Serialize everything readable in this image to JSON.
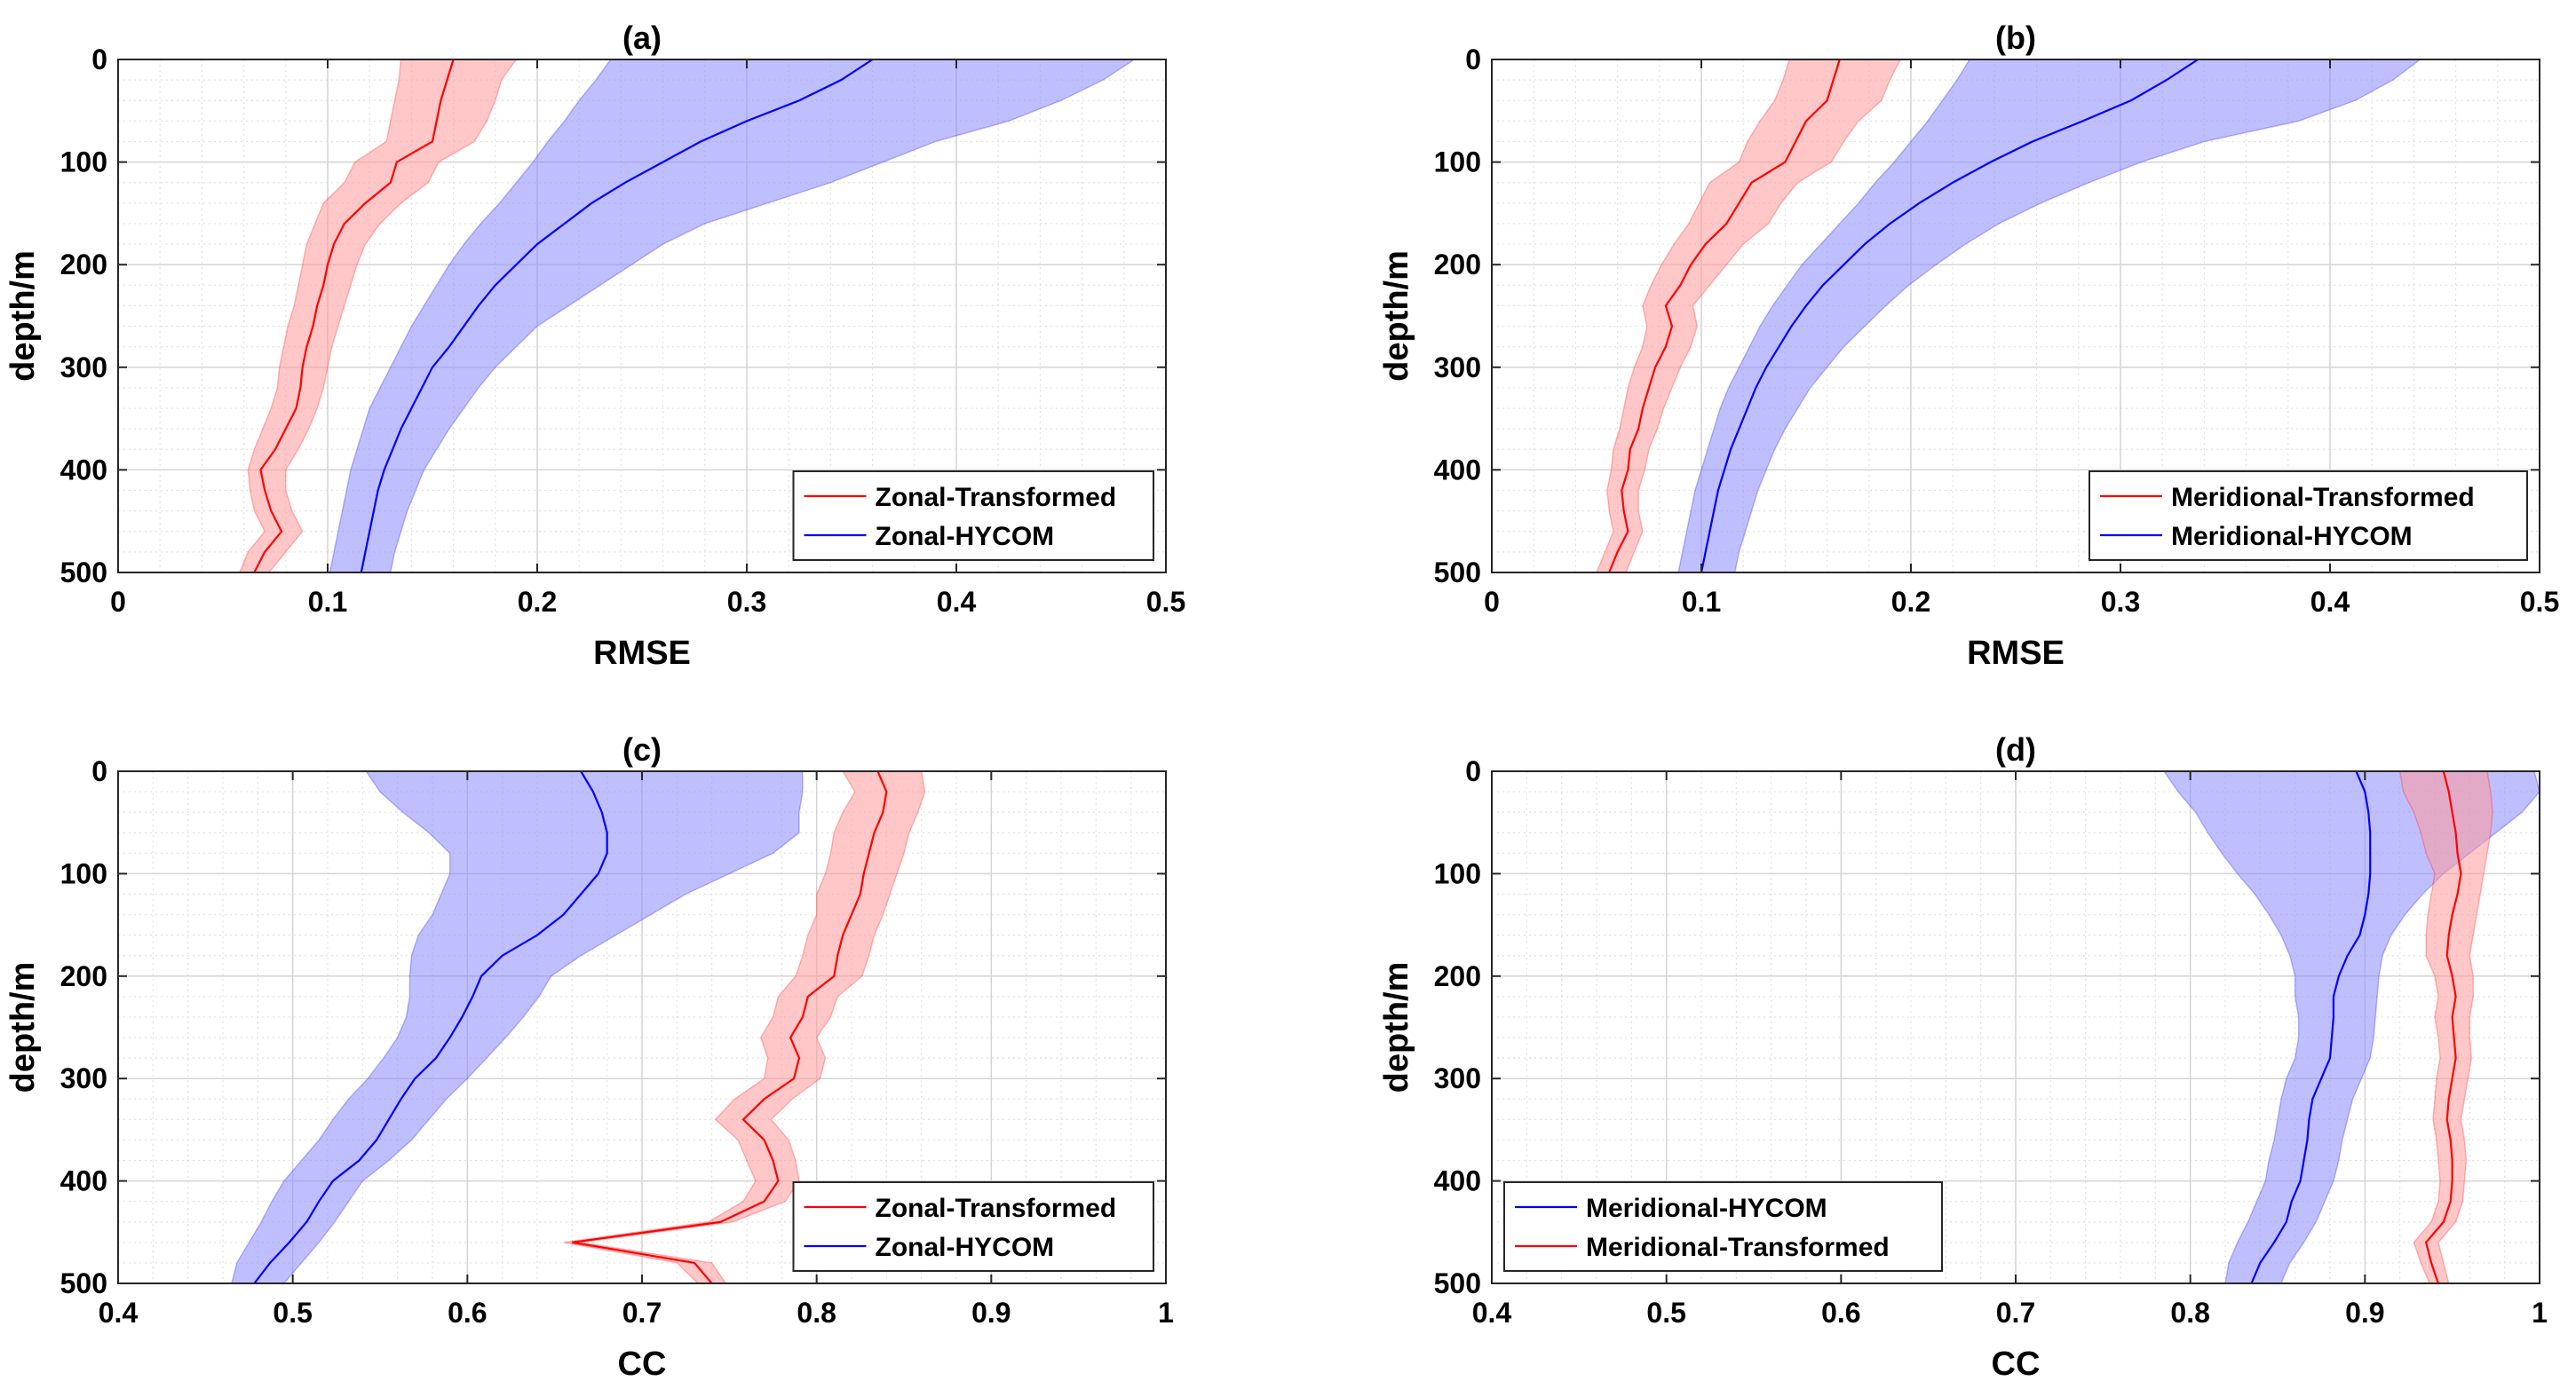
{
  "figure": {
    "panels": [
      "(a)",
      "(b)",
      "(c)",
      "(d)"
    ]
  },
  "chart_data": [
    {
      "id": "a",
      "type": "line",
      "title": "(a)",
      "xlabel": "RMSE",
      "ylabel": "depth/m",
      "xlim": [
        0,
        0.5
      ],
      "ylim": [
        0,
        500
      ],
      "y_reversed": true,
      "xticks": [
        "0",
        "0.1",
        "0.2",
        "0.3",
        "0.4",
        "0.5"
      ],
      "yticks": [
        "0",
        "100",
        "200",
        "300",
        "400",
        "500"
      ],
      "grid": true,
      "legend_position": "bottom-right",
      "depth": [
        0,
        20,
        40,
        60,
        80,
        100,
        120,
        140,
        160,
        180,
        200,
        220,
        240,
        260,
        280,
        300,
        320,
        340,
        360,
        380,
        400,
        420,
        440,
        460,
        480,
        500
      ],
      "series": [
        {
          "name": "Zonal-Transformed",
          "color": "#ff0000",
          "fill": "#ff9999",
          "mean": [
            0.16,
            0.157,
            0.154,
            0.152,
            0.15,
            0.133,
            0.13,
            0.118,
            0.108,
            0.103,
            0.1,
            0.098,
            0.095,
            0.093,
            0.09,
            0.088,
            0.087,
            0.085,
            0.08,
            0.075,
            0.068,
            0.07,
            0.073,
            0.078,
            0.07,
            0.065
          ],
          "lower": [
            0.135,
            0.134,
            0.132,
            0.13,
            0.128,
            0.113,
            0.108,
            0.098,
            0.094,
            0.09,
            0.088,
            0.086,
            0.084,
            0.081,
            0.079,
            0.077,
            0.076,
            0.073,
            0.069,
            0.065,
            0.062,
            0.063,
            0.065,
            0.07,
            0.062,
            0.058
          ],
          "upper": [
            0.19,
            0.183,
            0.18,
            0.176,
            0.17,
            0.153,
            0.148,
            0.135,
            0.125,
            0.118,
            0.114,
            0.111,
            0.108,
            0.105,
            0.102,
            0.1,
            0.098,
            0.095,
            0.091,
            0.086,
            0.08,
            0.08,
            0.083,
            0.088,
            0.08,
            0.072
          ]
        },
        {
          "name": "Zonal-HYCOM",
          "color": "#0000ff",
          "fill": "#8a8aff",
          "mean": [
            0.36,
            0.345,
            0.325,
            0.3,
            0.278,
            0.26,
            0.242,
            0.226,
            0.213,
            0.2,
            0.19,
            0.18,
            0.172,
            0.165,
            0.158,
            0.15,
            0.145,
            0.14,
            0.135,
            0.131,
            0.127,
            0.124,
            0.122,
            0.12,
            0.118,
            0.116
          ],
          "lower": [
            0.235,
            0.228,
            0.22,
            0.213,
            0.205,
            0.198,
            0.19,
            0.182,
            0.173,
            0.165,
            0.158,
            0.152,
            0.146,
            0.14,
            0.135,
            0.13,
            0.125,
            0.12,
            0.117,
            0.114,
            0.111,
            0.109,
            0.107,
            0.105,
            0.103,
            0.101
          ],
          "upper": [
            0.485,
            0.47,
            0.45,
            0.425,
            0.39,
            0.365,
            0.34,
            0.31,
            0.28,
            0.26,
            0.245,
            0.23,
            0.215,
            0.2,
            0.19,
            0.18,
            0.172,
            0.165,
            0.158,
            0.152,
            0.146,
            0.142,
            0.138,
            0.135,
            0.132,
            0.13
          ]
        }
      ]
    },
    {
      "id": "b",
      "type": "line",
      "title": "(b)",
      "xlabel": "RMSE",
      "ylabel": "depth/m",
      "xlim": [
        0,
        0.5
      ],
      "ylim": [
        0,
        500
      ],
      "y_reversed": true,
      "xticks": [
        "0",
        "0.1",
        "0.2",
        "0.3",
        "0.4",
        "0.5"
      ],
      "yticks": [
        "0",
        "100",
        "200",
        "300",
        "400",
        "500"
      ],
      "grid": true,
      "legend_position": "bottom-right",
      "depth": [
        0,
        20,
        40,
        60,
        80,
        100,
        120,
        140,
        160,
        180,
        200,
        220,
        240,
        260,
        280,
        300,
        320,
        340,
        360,
        380,
        400,
        420,
        440,
        460,
        480,
        500
      ],
      "series": [
        {
          "name": "Meridional-Transformed",
          "color": "#ff0000",
          "fill": "#ff9999",
          "mean": [
            0.166,
            0.163,
            0.16,
            0.15,
            0.145,
            0.14,
            0.124,
            0.118,
            0.112,
            0.102,
            0.095,
            0.09,
            0.083,
            0.086,
            0.083,
            0.078,
            0.075,
            0.072,
            0.07,
            0.066,
            0.065,
            0.062,
            0.063,
            0.065,
            0.06,
            0.056
          ],
          "lower": [
            0.142,
            0.139,
            0.135,
            0.128,
            0.122,
            0.118,
            0.104,
            0.099,
            0.094,
            0.087,
            0.081,
            0.076,
            0.072,
            0.074,
            0.072,
            0.068,
            0.065,
            0.063,
            0.061,
            0.058,
            0.057,
            0.055,
            0.056,
            0.058,
            0.054,
            0.05
          ],
          "upper": [
            0.195,
            0.19,
            0.186,
            0.175,
            0.168,
            0.162,
            0.146,
            0.138,
            0.132,
            0.12,
            0.112,
            0.104,
            0.096,
            0.098,
            0.095,
            0.09,
            0.086,
            0.082,
            0.079,
            0.075,
            0.073,
            0.07,
            0.07,
            0.072,
            0.068,
            0.064
          ]
        },
        {
          "name": "Meridional-HYCOM",
          "color": "#0000ff",
          "fill": "#8a8aff",
          "mean": [
            0.337,
            0.322,
            0.305,
            0.282,
            0.258,
            0.238,
            0.22,
            0.204,
            0.19,
            0.178,
            0.168,
            0.158,
            0.15,
            0.143,
            0.137,
            0.131,
            0.126,
            0.122,
            0.118,
            0.114,
            0.111,
            0.108,
            0.106,
            0.104,
            0.102,
            0.1
          ],
          "lower": [
            0.228,
            0.222,
            0.215,
            0.208,
            0.2,
            0.192,
            0.183,
            0.175,
            0.166,
            0.157,
            0.148,
            0.141,
            0.134,
            0.128,
            0.123,
            0.118,
            0.113,
            0.109,
            0.106,
            0.103,
            0.1,
            0.097,
            0.095,
            0.093,
            0.091,
            0.089
          ],
          "upper": [
            0.443,
            0.43,
            0.412,
            0.385,
            0.34,
            0.31,
            0.285,
            0.262,
            0.242,
            0.226,
            0.212,
            0.199,
            0.188,
            0.178,
            0.168,
            0.16,
            0.152,
            0.146,
            0.14,
            0.135,
            0.131,
            0.127,
            0.124,
            0.121,
            0.118,
            0.116
          ]
        }
      ]
    },
    {
      "id": "c",
      "type": "line",
      "title": "(c)",
      "xlabel": "CC",
      "ylabel": "depth/m",
      "xlim": [
        0.4,
        1
      ],
      "ylim": [
        0,
        500
      ],
      "y_reversed": true,
      "xticks": [
        "0.4",
        "0.5",
        "0.6",
        "0.7",
        "0.8",
        "0.9",
        "1"
      ],
      "yticks": [
        "0",
        "100",
        "200",
        "300",
        "400",
        "500"
      ],
      "grid": true,
      "legend_position": "bottom-right",
      "depth": [
        0,
        20,
        40,
        60,
        80,
        100,
        120,
        140,
        160,
        180,
        200,
        220,
        240,
        260,
        280,
        300,
        320,
        340,
        360,
        380,
        400,
        420,
        440,
        460,
        480,
        500
      ],
      "series": [
        {
          "name": "Zonal-Transformed",
          "color": "#ff0000",
          "fill": "#ff9999",
          "mean": [
            0.835,
            0.84,
            0.838,
            0.833,
            0.83,
            0.827,
            0.825,
            0.82,
            0.815,
            0.812,
            0.81,
            0.795,
            0.792,
            0.785,
            0.79,
            0.787,
            0.77,
            0.758,
            0.77,
            0.775,
            0.778,
            0.77,
            0.745,
            0.66,
            0.73,
            0.74
          ],
          "lower": [
            0.815,
            0.822,
            0.815,
            0.81,
            0.808,
            0.805,
            0.8,
            0.8,
            0.795,
            0.792,
            0.788,
            0.778,
            0.775,
            0.768,
            0.772,
            0.77,
            0.753,
            0.742,
            0.755,
            0.76,
            0.765,
            0.758,
            0.738,
            0.655,
            0.72,
            0.732
          ],
          "upper": [
            0.86,
            0.862,
            0.858,
            0.853,
            0.85,
            0.846,
            0.842,
            0.838,
            0.833,
            0.83,
            0.826,
            0.812,
            0.808,
            0.8,
            0.805,
            0.802,
            0.786,
            0.774,
            0.784,
            0.788,
            0.79,
            0.782,
            0.752,
            0.665,
            0.74,
            0.748
          ]
        },
        {
          "name": "Zonal-HYCOM",
          "color": "#0000ff",
          "fill": "#8a8aff",
          "mean": [
            0.665,
            0.672,
            0.677,
            0.68,
            0.68,
            0.675,
            0.665,
            0.655,
            0.64,
            0.62,
            0.608,
            0.603,
            0.597,
            0.59,
            0.582,
            0.57,
            0.562,
            0.555,
            0.548,
            0.538,
            0.523,
            0.515,
            0.508,
            0.498,
            0.487,
            0.478
          ],
          "lower": [
            0.542,
            0.55,
            0.563,
            0.578,
            0.59,
            0.59,
            0.585,
            0.58,
            0.572,
            0.568,
            0.567,
            0.567,
            0.565,
            0.56,
            0.552,
            0.543,
            0.532,
            0.523,
            0.515,
            0.505,
            0.495,
            0.488,
            0.482,
            0.475,
            0.468,
            0.465
          ],
          "upper": [
            0.792,
            0.792,
            0.79,
            0.79,
            0.775,
            0.75,
            0.725,
            0.705,
            0.685,
            0.665,
            0.648,
            0.641,
            0.632,
            0.622,
            0.611,
            0.6,
            0.588,
            0.578,
            0.568,
            0.555,
            0.54,
            0.532,
            0.524,
            0.515,
            0.505,
            0.495
          ]
        }
      ]
    },
    {
      "id": "d",
      "type": "line",
      "title": "(d)",
      "xlabel": "CC",
      "ylabel": "depth/m",
      "xlim": [
        0.4,
        1
      ],
      "ylim": [
        0,
        500
      ],
      "y_reversed": true,
      "xticks": [
        "0.4",
        "0.5",
        "0.6",
        "0.7",
        "0.8",
        "0.9",
        "1"
      ],
      "yticks": [
        "0",
        "100",
        "200",
        "300",
        "400",
        "500"
      ],
      "grid": true,
      "legend_position": "bottom-left",
      "depth": [
        0,
        20,
        40,
        60,
        80,
        100,
        120,
        140,
        160,
        180,
        200,
        220,
        240,
        260,
        280,
        300,
        320,
        340,
        360,
        380,
        400,
        420,
        440,
        460,
        480,
        500
      ],
      "series": [
        {
          "name": "Meridional-HYCOM",
          "color": "#0000ff",
          "fill": "#8a8aff",
          "mean": [
            0.895,
            0.9,
            0.902,
            0.903,
            0.903,
            0.903,
            0.902,
            0.9,
            0.897,
            0.89,
            0.885,
            0.882,
            0.882,
            0.881,
            0.88,
            0.875,
            0.87,
            0.868,
            0.867,
            0.865,
            0.863,
            0.858,
            0.855,
            0.848,
            0.84,
            0.835
          ],
          "lower": [
            0.785,
            0.793,
            0.803,
            0.81,
            0.818,
            0.827,
            0.837,
            0.845,
            0.852,
            0.857,
            0.86,
            0.86,
            0.862,
            0.862,
            0.86,
            0.855,
            0.852,
            0.85,
            0.848,
            0.845,
            0.843,
            0.838,
            0.833,
            0.827,
            0.822,
            0.82
          ],
          "upper": [
            0.997,
            1.0,
            0.99,
            0.975,
            0.96,
            0.945,
            0.933,
            0.923,
            0.915,
            0.91,
            0.908,
            0.907,
            0.906,
            0.905,
            0.903,
            0.898,
            0.893,
            0.89,
            0.887,
            0.885,
            0.882,
            0.877,
            0.872,
            0.865,
            0.857,
            0.852
          ]
        },
        {
          "name": "Meridional-Transformed",
          "color": "#ff0000",
          "fill": "#ff9999",
          "mean": [
            0.945,
            0.948,
            0.95,
            0.952,
            0.953,
            0.955,
            0.953,
            0.95,
            0.948,
            0.947,
            0.95,
            0.952,
            0.95,
            0.951,
            0.952,
            0.95,
            0.948,
            0.947,
            0.949,
            0.95,
            0.95,
            0.949,
            0.945,
            0.935,
            0.938,
            0.942
          ],
          "lower": [
            0.92,
            0.922,
            0.928,
            0.932,
            0.935,
            0.94,
            0.938,
            0.936,
            0.935,
            0.935,
            0.94,
            0.942,
            0.94,
            0.942,
            0.943,
            0.941,
            0.94,
            0.939,
            0.941,
            0.942,
            0.943,
            0.942,
            0.938,
            0.928,
            0.932,
            0.937
          ],
          "upper": [
            0.97,
            0.972,
            0.973,
            0.972,
            0.97,
            0.968,
            0.966,
            0.964,
            0.962,
            0.96,
            0.962,
            0.962,
            0.96,
            0.96,
            0.961,
            0.959,
            0.957,
            0.955,
            0.957,
            0.958,
            0.957,
            0.956,
            0.952,
            0.942,
            0.945,
            0.948
          ]
        }
      ]
    }
  ]
}
